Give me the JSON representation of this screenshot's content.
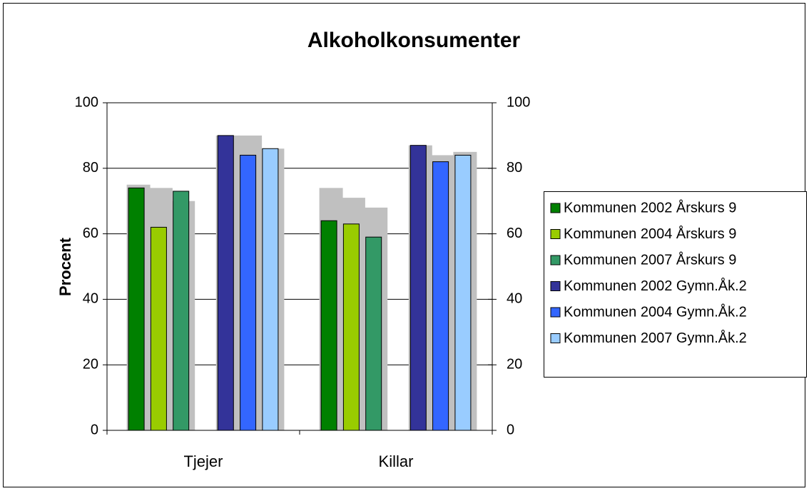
{
  "chart_data": {
    "type": "bar",
    "title": "Alkoholkonsumenter",
    "y_label": "Procent",
    "categories": [
      "Tjejer",
      "Killar"
    ],
    "series": [
      {
        "name": "Kommunen 2002 Årskurs 9",
        "color": "#008000",
        "values": [
          74,
          64
        ]
      },
      {
        "name": "Kommunen 2004 Årskurs 9",
        "color": "#99cc00",
        "values": [
          62,
          63
        ]
      },
      {
        "name": "Kommunen 2007 Årskurs 9",
        "color": "#339966",
        "values": [
          73,
          59
        ]
      },
      {
        "name": "Kommunen 2002 Gymn.Åk.2",
        "color": "#333399",
        "values": [
          90,
          87
        ]
      },
      {
        "name": "Kommunen 2004 Gymn.Åk.2",
        "color": "#3366ff",
        "values": [
          84,
          82
        ]
      },
      {
        "name": "Kommunen 2007 Gymn.Åk.2",
        "color": "#99ccff",
        "values": [
          86,
          84
        ]
      },
      {
        "color": "#c0c0c0",
        "axis": "y2",
        "values": [
          75,
          74
        ]
      },
      {
        "color": "#c0c0c0",
        "axis": "y2",
        "values": [
          74,
          71
        ]
      },
      {
        "color": "#c0c0c0",
        "axis": "y2",
        "values": [
          70,
          68
        ]
      },
      {
        "color": "#c0c0c0",
        "axis": "y2",
        "values": [
          90,
          87
        ]
      },
      {
        "color": "#c0c0c0",
        "axis": "y2",
        "values": [
          90,
          84
        ]
      },
      {
        "color": "#c0c0c0",
        "axis": "y2",
        "values": [
          86,
          85
        ]
      }
    ],
    "ylim": [
      0,
      100
    ],
    "yticks": [
      0,
      20,
      40,
      60,
      80,
      100
    ],
    "y2lim": [
      0,
      100
    ],
    "y2ticks": [
      0,
      20,
      40,
      60,
      80,
      100
    ],
    "grid": true,
    "legend": "right"
  }
}
